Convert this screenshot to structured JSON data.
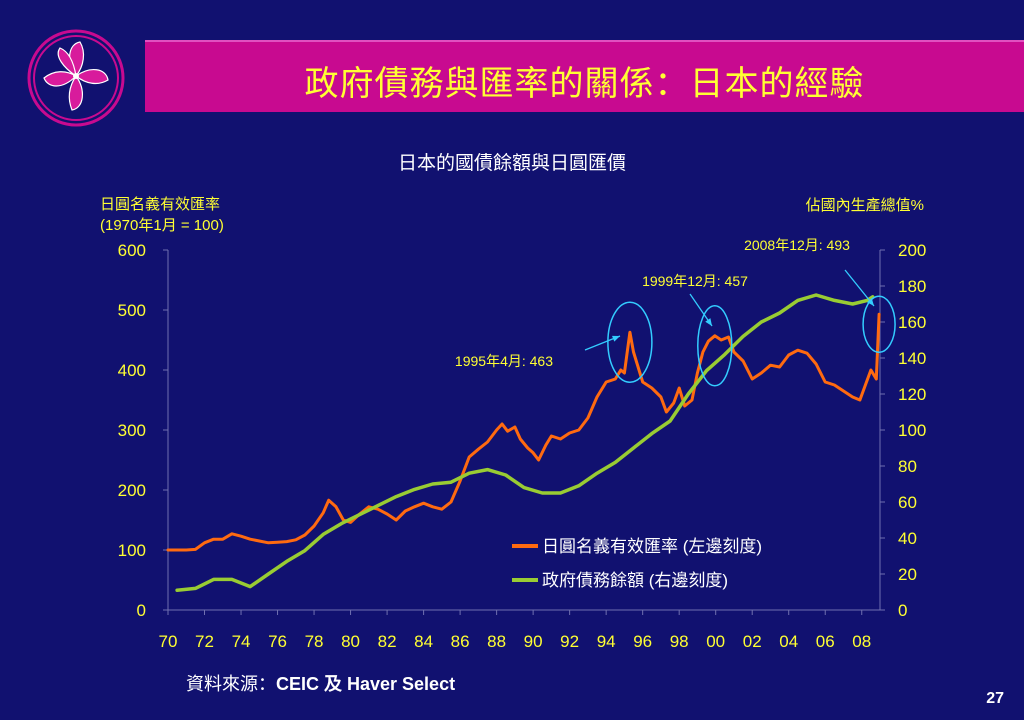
{
  "slide": {
    "title": "政府債務與匯率的關係：日本的經驗",
    "source_label": "資料來源：",
    "source_value": "CEIC 及 Haver Select",
    "page_number": "27",
    "colors": {
      "background": "#111170",
      "title_bar": "#c80a90",
      "accent_yellow": "#ffff33"
    }
  },
  "chart_data": {
    "type": "line",
    "title": "日本的國債餘額與日圓匯價",
    "ylabel_left_line1": "日圓名義有效匯率",
    "ylabel_left_line2": "(1970年1月 = 100)",
    "ylabel_right": "佔國內生產總值%",
    "ylim_left": [
      0,
      600
    ],
    "ylim_right": [
      0,
      200
    ],
    "xlim": [
      1970,
      2009
    ],
    "yticks_left": [
      "600",
      "500",
      "400",
      "300",
      "200",
      "100",
      "0"
    ],
    "yticks_right": [
      "200",
      "180",
      "160",
      "140",
      "120",
      "100",
      "80",
      "60",
      "40",
      "20",
      "0"
    ],
    "xticks": [
      "70",
      "72",
      "74",
      "76",
      "78",
      "80",
      "82",
      "84",
      "86",
      "88",
      "90",
      "92",
      "94",
      "96",
      "98",
      "00",
      "02",
      "04",
      "06",
      "08"
    ],
    "series": [
      {
        "name": "日圓名義有效匯率 (左邊刻度)",
        "axis": "left",
        "color": "#ff6a10",
        "points": [
          [
            1970.0,
            100
          ],
          [
            1971.0,
            100
          ],
          [
            1971.5,
            101
          ],
          [
            1972.0,
            112
          ],
          [
            1972.5,
            118
          ],
          [
            1973.0,
            118
          ],
          [
            1973.5,
            127
          ],
          [
            1974.0,
            123
          ],
          [
            1974.5,
            118
          ],
          [
            1975.0,
            115
          ],
          [
            1975.5,
            112
          ],
          [
            1976.0,
            113
          ],
          [
            1976.5,
            114
          ],
          [
            1977.0,
            117
          ],
          [
            1977.5,
            125
          ],
          [
            1978.0,
            140
          ],
          [
            1978.5,
            162
          ],
          [
            1978.8,
            183
          ],
          [
            1979.2,
            172
          ],
          [
            1979.6,
            150
          ],
          [
            1980.0,
            146
          ],
          [
            1980.5,
            160
          ],
          [
            1981.0,
            172
          ],
          [
            1981.5,
            168
          ],
          [
            1982.0,
            160
          ],
          [
            1982.5,
            150
          ],
          [
            1983.0,
            165
          ],
          [
            1983.5,
            172
          ],
          [
            1984.0,
            178
          ],
          [
            1984.5,
            172
          ],
          [
            1985.0,
            168
          ],
          [
            1985.5,
            180
          ],
          [
            1986.0,
            215
          ],
          [
            1986.5,
            255
          ],
          [
            1987.0,
            268
          ],
          [
            1987.5,
            280
          ],
          [
            1988.0,
            300
          ],
          [
            1988.3,
            310
          ],
          [
            1988.6,
            298
          ],
          [
            1989.0,
            305
          ],
          [
            1989.3,
            285
          ],
          [
            1989.7,
            270
          ],
          [
            1990.0,
            262
          ],
          [
            1990.3,
            250
          ],
          [
            1990.7,
            275
          ],
          [
            1991.0,
            290
          ],
          [
            1991.5,
            285
          ],
          [
            1992.0,
            295
          ],
          [
            1992.5,
            300
          ],
          [
            1993.0,
            320
          ],
          [
            1993.5,
            355
          ],
          [
            1994.0,
            380
          ],
          [
            1994.5,
            385
          ],
          [
            1994.8,
            400
          ],
          [
            1995.0,
            395
          ],
          [
            1995.3,
            463
          ],
          [
            1995.5,
            430
          ],
          [
            1995.8,
            400
          ],
          [
            1996.0,
            380
          ],
          [
            1996.5,
            370
          ],
          [
            1997.0,
            355
          ],
          [
            1997.3,
            330
          ],
          [
            1997.7,
            345
          ],
          [
            1998.0,
            370
          ],
          [
            1998.3,
            340
          ],
          [
            1998.7,
            350
          ],
          [
            1999.0,
            395
          ],
          [
            1999.3,
            430
          ],
          [
            1999.6,
            448
          ],
          [
            1999.95,
            457
          ],
          [
            2000.3,
            450
          ],
          [
            2000.7,
            455
          ],
          [
            2001.0,
            430
          ],
          [
            2001.5,
            415
          ],
          [
            2002.0,
            385
          ],
          [
            2002.5,
            395
          ],
          [
            2003.0,
            408
          ],
          [
            2003.5,
            405
          ],
          [
            2004.0,
            425
          ],
          [
            2004.5,
            433
          ],
          [
            2005.0,
            428
          ],
          [
            2005.5,
            410
          ],
          [
            2006.0,
            380
          ],
          [
            2006.5,
            375
          ],
          [
            2007.0,
            365
          ],
          [
            2007.5,
            355
          ],
          [
            2007.9,
            350
          ],
          [
            2008.2,
            375
          ],
          [
            2008.5,
            400
          ],
          [
            2008.8,
            385
          ],
          [
            2008.95,
            493
          ]
        ]
      },
      {
        "name": "政府債務餘額 (右邊刻度)",
        "axis": "right",
        "color": "#99cc33",
        "points": [
          [
            1970.5,
            11
          ],
          [
            1971.5,
            12
          ],
          [
            1972.5,
            17
          ],
          [
            1973.5,
            17
          ],
          [
            1974.5,
            13
          ],
          [
            1975.5,
            20
          ],
          [
            1976.5,
            27
          ],
          [
            1977.5,
            33
          ],
          [
            1978.5,
            42
          ],
          [
            1979.5,
            48
          ],
          [
            1980.5,
            53
          ],
          [
            1981.5,
            58
          ],
          [
            1982.5,
            63
          ],
          [
            1983.5,
            67
          ],
          [
            1984.5,
            70
          ],
          [
            1985.5,
            71
          ],
          [
            1986.5,
            76
          ],
          [
            1987.5,
            78
          ],
          [
            1988.5,
            75
          ],
          [
            1989.5,
            68
          ],
          [
            1990.5,
            65
          ],
          [
            1991.5,
            65
          ],
          [
            1992.5,
            69
          ],
          [
            1993.5,
            76
          ],
          [
            1994.5,
            82
          ],
          [
            1995.5,
            90
          ],
          [
            1996.5,
            98
          ],
          [
            1997.5,
            105
          ],
          [
            1998.5,
            120
          ],
          [
            1999.5,
            133
          ],
          [
            2000.5,
            142
          ],
          [
            2001.5,
            152
          ],
          [
            2002.5,
            160
          ],
          [
            2003.5,
            165
          ],
          [
            2004.5,
            172
          ],
          [
            2005.5,
            175
          ],
          [
            2006.5,
            172
          ],
          [
            2007.5,
            170
          ],
          [
            2008.3,
            172
          ],
          [
            2008.6,
            174
          ]
        ]
      }
    ],
    "annotations": [
      {
        "label": "1995年4月: 463",
        "x": 1995.3,
        "y": 463
      },
      {
        "label": "1999年12月: 457",
        "x": 1999.95,
        "y": 457
      },
      {
        "label": "2008年12月: 493",
        "x": 2008.95,
        "y": 493
      }
    ],
    "legend": [
      {
        "label": "日圓名義有效匯率 (左邊刻度)",
        "color": "#ff6a10"
      },
      {
        "label": "政府債務餘額 (右邊刻度)",
        "color": "#99cc33"
      }
    ],
    "legend_position": "bottom-right",
    "grid": false
  }
}
